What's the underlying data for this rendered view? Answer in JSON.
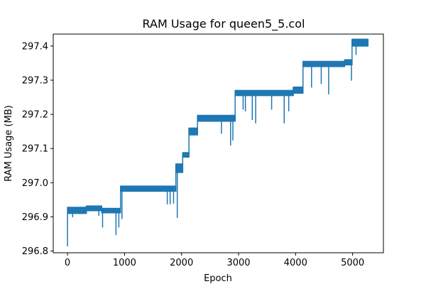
{
  "chart_data": {
    "type": "line",
    "title": "RAM Usage for queen5_5.col",
    "xlabel": "Epoch",
    "ylabel": "RAM Usage (MB)",
    "xlim": [
      -250,
      5540
    ],
    "ylim": [
      296.795,
      297.435
    ],
    "grid": false,
    "color": "#1f77b4",
    "x_ticks": [
      0,
      1000,
      2000,
      3000,
      4000,
      5000
    ],
    "x_tick_labels": [
      "0",
      "1000",
      "2000",
      "3000",
      "4000",
      "5000"
    ],
    "y_ticks": [
      296.8,
      296.9,
      297.0,
      297.1,
      297.2,
      297.3,
      297.4
    ],
    "y_tick_labels": [
      "296.8",
      "296.9",
      "297.0",
      "297.1",
      "297.2",
      "297.3",
      "297.4"
    ],
    "series": [
      {
        "levels": [
          {
            "x_start": 0,
            "x_end": 330,
            "low": 296.91,
            "high": 296.928
          },
          {
            "x_start": 330,
            "x_end": 600,
            "low": 296.918,
            "high": 296.932
          },
          {
            "x_start": 600,
            "x_end": 930,
            "low": 296.912,
            "high": 296.925
          },
          {
            "x_start": 930,
            "x_end": 1900,
            "low": 296.975,
            "high": 296.99
          },
          {
            "x_start": 1900,
            "x_end": 2020,
            "low": 297.03,
            "high": 297.055
          },
          {
            "x_start": 2020,
            "x_end": 2130,
            "low": 297.075,
            "high": 297.088
          },
          {
            "x_start": 2130,
            "x_end": 2280,
            "low": 297.14,
            "high": 297.16
          },
          {
            "x_start": 2280,
            "x_end": 2940,
            "low": 297.18,
            "high": 297.197
          },
          {
            "x_start": 2940,
            "x_end": 3960,
            "low": 297.255,
            "high": 297.27
          },
          {
            "x_start": 3960,
            "x_end": 4130,
            "low": 297.262,
            "high": 297.28
          },
          {
            "x_start": 4130,
            "x_end": 4860,
            "low": 297.34,
            "high": 297.355
          },
          {
            "x_start": 4860,
            "x_end": 4990,
            "low": 297.345,
            "high": 297.36
          },
          {
            "x_start": 4990,
            "x_end": 5270,
            "low": 297.4,
            "high": 297.42
          }
        ],
        "spikes": [
          [
            0,
            296.815
          ],
          [
            90,
            296.9
          ],
          [
            550,
            296.905
          ],
          [
            615,
            296.87
          ],
          [
            850,
            296.848
          ],
          [
            900,
            296.87
          ],
          [
            955,
            296.895
          ],
          [
            1750,
            296.938
          ],
          [
            1800,
            296.938
          ],
          [
            1860,
            296.94
          ],
          [
            1925,
            296.898
          ],
          [
            2020,
            297.03
          ],
          [
            2700,
            297.145
          ],
          [
            2860,
            297.11
          ],
          [
            2900,
            297.125
          ],
          [
            3080,
            297.215
          ],
          [
            3120,
            297.21
          ],
          [
            3240,
            297.185
          ],
          [
            3300,
            297.175
          ],
          [
            3580,
            297.215
          ],
          [
            3800,
            297.175
          ],
          [
            3880,
            297.21
          ],
          [
            4280,
            297.28
          ],
          [
            4450,
            297.29
          ],
          [
            4580,
            297.26
          ],
          [
            4980,
            297.3
          ],
          [
            5060,
            297.375
          ]
        ]
      }
    ]
  }
}
